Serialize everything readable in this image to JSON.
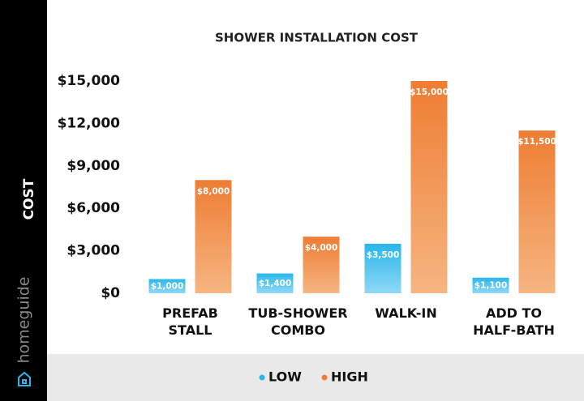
{
  "brand": "homeguide",
  "chart_data": {
    "type": "bar",
    "title": "SHOWER INSTALLATION COST",
    "y_label": "COST",
    "categories": [
      [
        "PREFAB",
        "STALL"
      ],
      [
        "TUB-SHOWER",
        "COMBO"
      ],
      [
        "WALK-IN"
      ],
      [
        "ADD TO",
        "HALF-BATH"
      ]
    ],
    "series": [
      {
        "name": "LOW",
        "color": "#29b6ea",
        "values": [
          1000,
          1400,
          3500,
          1100
        ],
        "value_labels": [
          "$1,000",
          "$1,400",
          "$3,500",
          "$1,100"
        ]
      },
      {
        "name": "HIGH",
        "color": "#ee7d33",
        "values": [
          8000,
          4000,
          15000,
          11500
        ],
        "value_labels": [
          "$8,000",
          "$4,000",
          "$15,000",
          "$11,500"
        ]
      }
    ],
    "ylim": [
      0,
      15000
    ],
    "yticks": [
      {
        "value": 0,
        "label": "$0"
      },
      {
        "value": 3000,
        "label": "$3,000"
      },
      {
        "value": 6000,
        "label": "$6,000"
      },
      {
        "value": 9000,
        "label": "$9,000"
      },
      {
        "value": 12000,
        "label": "$12,000"
      },
      {
        "value": 15000,
        "label": "$15,000"
      }
    ],
    "legend": "bottom"
  }
}
